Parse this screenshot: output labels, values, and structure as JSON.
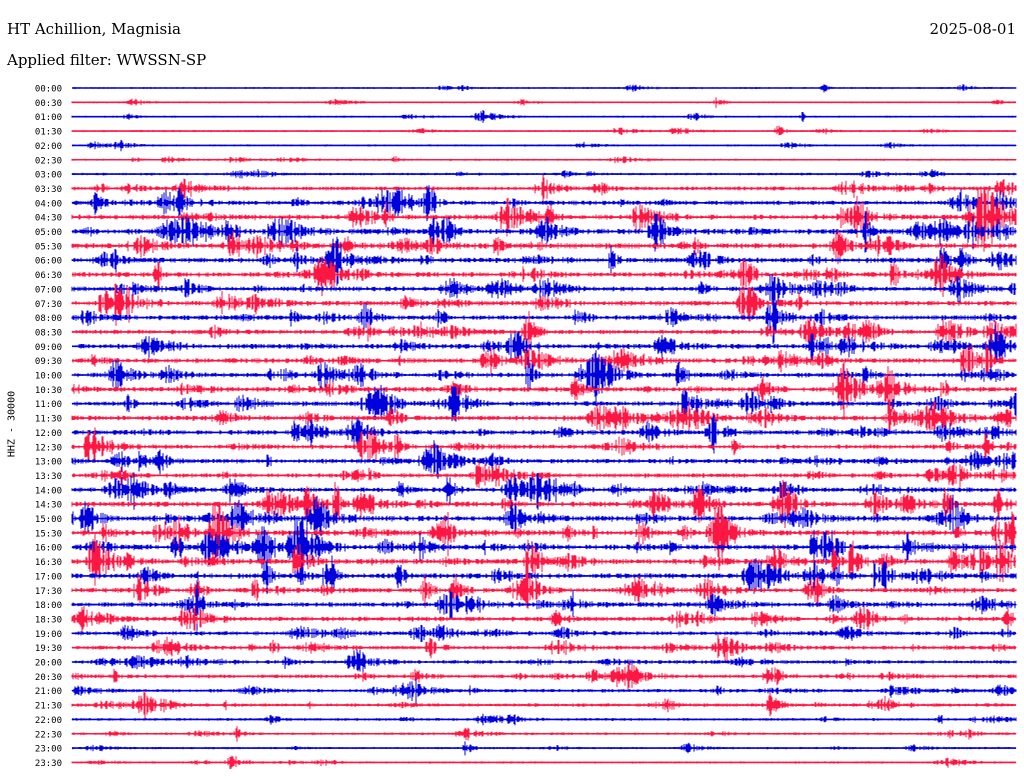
{
  "header": {
    "station": "HT Achillion, Magnisia",
    "date": "2025-08-01",
    "filter": "Applied filter: WWSSN-SP"
  },
  "chart_data": {
    "type": "line",
    "subtype": "helicorder",
    "title": "HT Achillion, Magnisia",
    "ylabel": "HHZ - 30000",
    "trace_colors": [
      "#0000dd",
      "#ff1744"
    ],
    "rows": [
      {
        "label": "00:00",
        "activity": 0.05
      },
      {
        "label": "00:30",
        "activity": 0.05
      },
      {
        "label": "01:00",
        "activity": 0.05
      },
      {
        "label": "01:30",
        "activity": 0.06
      },
      {
        "label": "02:00",
        "activity": 0.07
      },
      {
        "label": "02:30",
        "activity": 0.08
      },
      {
        "label": "03:00",
        "activity": 0.15
      },
      {
        "label": "03:30",
        "activity": 0.35
      },
      {
        "label": "04:00",
        "activity": 0.45
      },
      {
        "label": "04:30",
        "activity": 0.55
      },
      {
        "label": "05:00",
        "activity": 0.6
      },
      {
        "label": "05:30",
        "activity": 0.6
      },
      {
        "label": "06:00",
        "activity": 0.55
      },
      {
        "label": "06:30",
        "activity": 0.5
      },
      {
        "label": "07:00",
        "activity": 0.5
      },
      {
        "label": "07:30",
        "activity": 0.5
      },
      {
        "label": "08:00",
        "activity": 0.5
      },
      {
        "label": "08:30",
        "activity": 0.45
      },
      {
        "label": "09:00",
        "activity": 0.5
      },
      {
        "label": "09:30",
        "activity": 0.5
      },
      {
        "label": "10:00",
        "activity": 0.5
      },
      {
        "label": "10:30",
        "activity": 0.5
      },
      {
        "label": "11:00",
        "activity": 0.5
      },
      {
        "label": "11:30",
        "activity": 0.55
      },
      {
        "label": "12:00",
        "activity": 0.5
      },
      {
        "label": "12:30",
        "activity": 0.45
      },
      {
        "label": "13:00",
        "activity": 0.45
      },
      {
        "label": "13:30",
        "activity": 0.45
      },
      {
        "label": "14:00",
        "activity": 0.5
      },
      {
        "label": "14:30",
        "activity": 0.55
      },
      {
        "label": "15:00",
        "activity": 0.6
      },
      {
        "label": "15:30",
        "activity": 0.6
      },
      {
        "label": "16:00",
        "activity": 0.6
      },
      {
        "label": "16:30",
        "activity": 0.6
      },
      {
        "label": "17:00",
        "activity": 0.55
      },
      {
        "label": "17:30",
        "activity": 0.5
      },
      {
        "label": "18:00",
        "activity": 0.5
      },
      {
        "label": "18:30",
        "activity": 0.45
      },
      {
        "label": "19:00",
        "activity": 0.4
      },
      {
        "label": "19:30",
        "activity": 0.35
      },
      {
        "label": "20:00",
        "activity": 0.35
      },
      {
        "label": "20:30",
        "activity": 0.35
      },
      {
        "label": "21:00",
        "activity": 0.3
      },
      {
        "label": "21:30",
        "activity": 0.3
      },
      {
        "label": "22:00",
        "activity": 0.2
      },
      {
        "label": "22:30",
        "activity": 0.15
      },
      {
        "label": "23:00",
        "activity": 0.12
      },
      {
        "label": "23:30",
        "activity": 0.1
      }
    ]
  }
}
